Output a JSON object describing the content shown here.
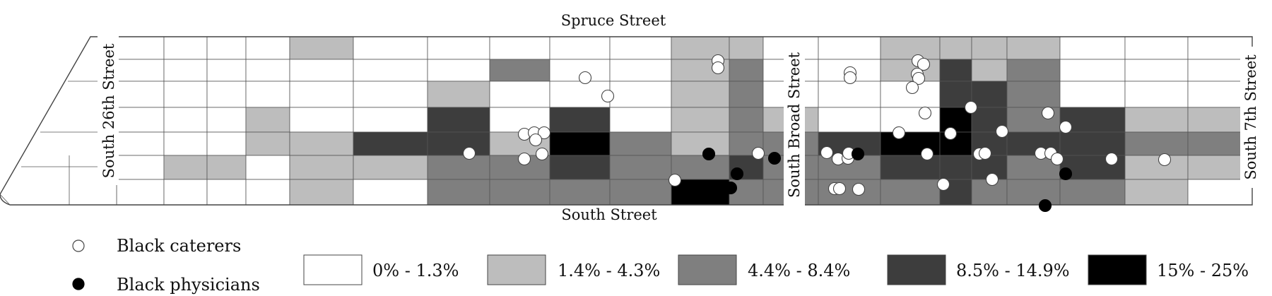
{
  "streets": {
    "north": "Spruce Street",
    "south": "South Street",
    "west": "South 26th Street",
    "broad": "South Broad Street",
    "east": "South 7th Street"
  },
  "legend": {
    "points": [
      {
        "label": "Black caterers",
        "fill": "#ffffff"
      },
      {
        "label": "Black physicians",
        "fill": "#000000"
      }
    ],
    "classes": [
      {
        "label": "0% - 1.3%",
        "color": "#ffffff"
      },
      {
        "label": "1.4% - 4.3%",
        "color": "#bdbdbd"
      },
      {
        "label": "4.4% - 8.4%",
        "color": "#7f7f7f"
      },
      {
        "label": "8.5% - 14.9%",
        "color": "#3d3d3d"
      },
      {
        "label": "15% - 25%",
        "color": "#000000"
      }
    ]
  }
}
